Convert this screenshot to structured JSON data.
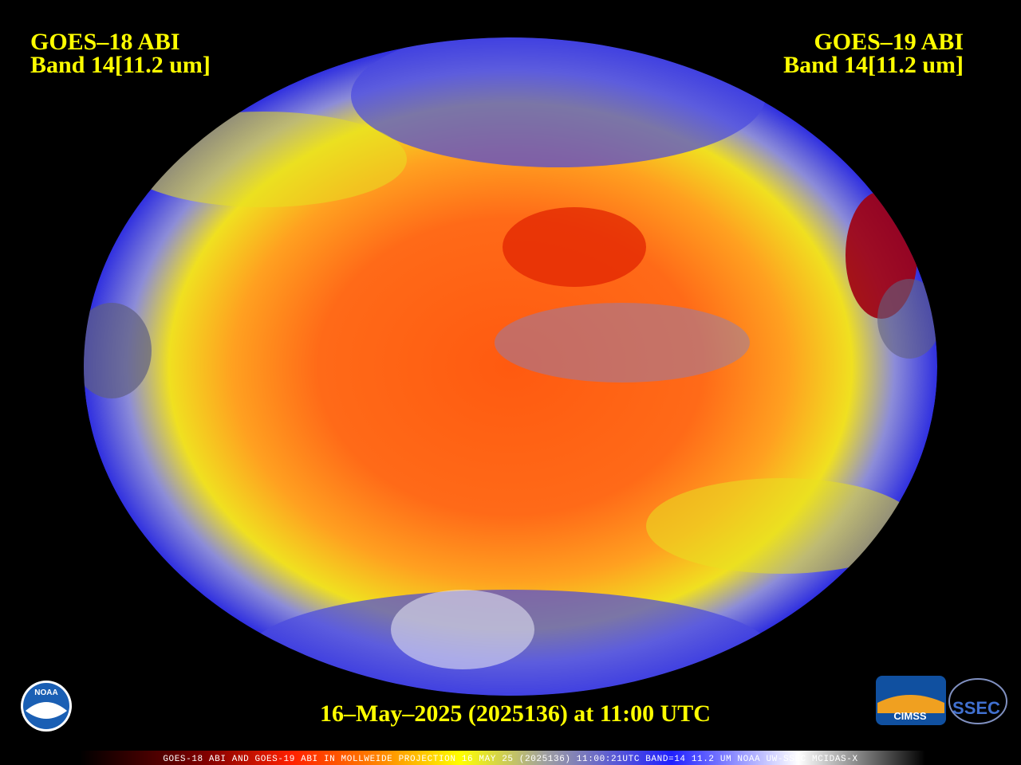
{
  "left_label": {
    "satellite": "GOES–18 ABI",
    "band": "Band 14[11.2 um]"
  },
  "right_label": {
    "satellite": "GOES–19 ABI",
    "band": "Band 14[11.2 um]"
  },
  "timestamp": "16–May–2025 (2025136) at 11:00 UTC",
  "caption": "GOES-18 ABI AND GOES-19 ABI IN MOLLWEIDE PROJECTION 16 MAY 25 (2025136) 11:00:21UTC BAND=14 11.2 UM NOAA UW-SSEC MCIDAS-X",
  "logos": {
    "noaa": "NOAA",
    "cimss": "CIMSS",
    "ssec": "SSEC"
  }
}
